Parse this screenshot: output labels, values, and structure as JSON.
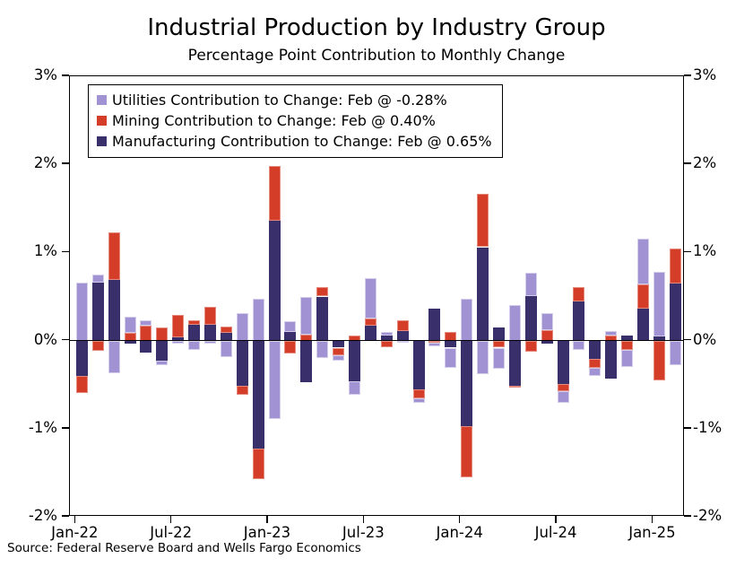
{
  "title": "Industrial Production by Industry Group",
  "subtitle": "Percentage Point Contribution to Monthly Change",
  "source": "Source: Federal Reserve Board and Wells Fargo Economics",
  "chart_data": {
    "type": "bar",
    "stacked": true,
    "title": "Industrial Production by Industry Group",
    "subtitle": "Percentage Point Contribution to Monthly Change",
    "ylim": [
      -2,
      3
    ],
    "yticks": [
      "3%",
      "2%",
      "1%",
      "0%",
      "-1%",
      "-2%"
    ],
    "ytick_values": [
      3,
      2,
      1,
      0,
      -1,
      -2
    ],
    "xticks": [
      "Jan-22",
      "Jul-22",
      "Jan-23",
      "Jul-23",
      "Jan-24",
      "Jul-24",
      "Jan-25"
    ],
    "grid": false,
    "legend_position": "top-left",
    "stack_order": [
      "manufacturing",
      "mining",
      "utilities"
    ],
    "categories": [
      "Jan-22",
      "Feb-22",
      "Mar-22",
      "Apr-22",
      "May-22",
      "Jun-22",
      "Jul-22",
      "Aug-22",
      "Sep-22",
      "Oct-22",
      "Nov-22",
      "Dec-22",
      "Jan-23",
      "Feb-23",
      "Mar-23",
      "Apr-23",
      "May-23",
      "Jun-23",
      "Jul-23",
      "Aug-23",
      "Sep-23",
      "Oct-23",
      "Nov-23",
      "Dec-23",
      "Jan-24",
      "Feb-24",
      "Mar-24",
      "Apr-24",
      "May-24",
      "Jun-24",
      "Jul-24",
      "Aug-24",
      "Sep-24",
      "Oct-24",
      "Nov-24",
      "Dec-24",
      "Jan-25",
      "Feb-25"
    ],
    "series": [
      {
        "key": "utilities",
        "label": "Utilities Contribution to Change: Feb @ -0.28%",
        "color": "#a193d3",
        "values": [
          0.66,
          0.09,
          -0.37,
          0.18,
          0.06,
          -0.05,
          -0.04,
          -0.11,
          -0.04,
          -0.19,
          0.31,
          0.48,
          -0.89,
          0.12,
          0.43,
          -0.2,
          -0.06,
          -0.16,
          0.46,
          0.04,
          -0.03,
          -0.05,
          -0.05,
          -0.23,
          0.48,
          -0.38,
          -0.24,
          0.4,
          0.26,
          0.19,
          -0.14,
          -0.11,
          -0.09,
          0.05,
          -0.19,
          0.52,
          0.73,
          -0.28
        ]
      },
      {
        "key": "mining",
        "label": "Mining Contribution to Change: Feb @ 0.40%",
        "color": "#d43d28",
        "values": [
          -0.19,
          -0.12,
          0.54,
          0.09,
          0.17,
          0.15,
          0.25,
          0.05,
          0.2,
          0.07,
          -0.11,
          -0.34,
          0.62,
          -0.15,
          0.07,
          0.11,
          -0.09,
          0.06,
          0.08,
          -0.08,
          0.12,
          -0.11,
          -0.02,
          0.1,
          -0.58,
          0.61,
          -0.08,
          -0.02,
          -0.13,
          0.12,
          -0.08,
          0.17,
          -0.1,
          0.06,
          -0.11,
          0.28,
          -0.45,
          0.4
        ]
      },
      {
        "key": "manufacturing",
        "label": "Manufacturing Contribution to Change: Feb @ 0.65%",
        "color": "#382f6b",
        "values": [
          -0.4,
          0.66,
          0.69,
          -0.04,
          -0.14,
          -0.23,
          0.04,
          0.18,
          0.18,
          0.09,
          -0.51,
          -1.23,
          1.36,
          0.1,
          -0.47,
          0.5,
          -0.08,
          -0.46,
          0.17,
          0.06,
          0.11,
          -0.55,
          0.36,
          -0.08,
          -0.97,
          1.06,
          0.15,
          -0.51,
          0.51,
          -0.04,
          -0.49,
          0.44,
          -0.21,
          -0.43,
          0.06,
          0.36,
          0.05,
          0.65
        ]
      }
    ]
  }
}
